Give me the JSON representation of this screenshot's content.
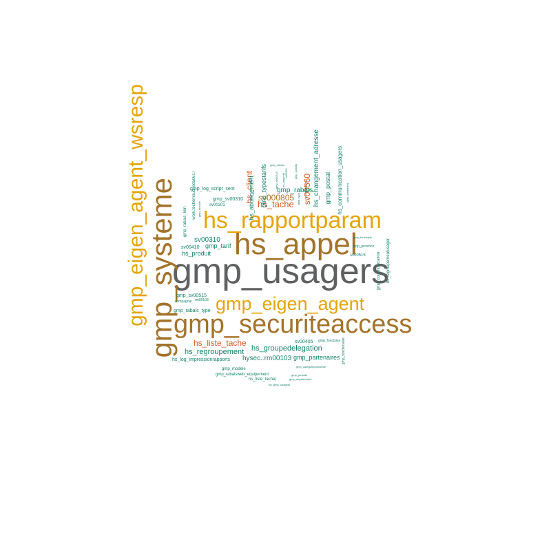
{
  "palette": {
    "gray": "#5f6062",
    "gold": "#e3a50e",
    "brown": "#a3732a",
    "orange": "#d2581f",
    "teal": "#14806b"
  },
  "words": {
    "gmp_usagers": "gmp_usagers",
    "gmp_securiteaccess": "gmp_securiteaccess",
    "hs_appel": "hs_appel",
    "hs_rapportparam": "hs_rapportparam",
    "gmp_eigen_agent": "gmp_eigen_agent",
    "gmp_systeme": "gmp_systeme",
    "gmp_eigen_agent_wsresp": "gmp_eigen_agent_wsresp",
    "hs_tache": "hs_tache",
    "hs_client": "hs_client",
    "sv000805": "sv000805",
    "sv00560": "sv00560",
    "hs_liste_tache": "hs_liste_tache",
    "hs_regroupement": "hs_regroupement",
    "hs_groupedelegation": "hs_groupedelegation",
    "hysec_rm00103": "hysec..rm00103",
    "gmp_partenaires": "gmp_partenaires",
    "hs_log_impressionrapports": "hs_log_impressionrapports",
    "sv00310": "sv00310",
    "gmp_tarif": "gmp_tarif",
    "hs_produit": "hs_produit",
    "sv00410": "sv00410",
    "gmp_rabais": "gmp_rabais",
    "gmp_typestarifs": "gmp_typestarifs",
    "hs_changement_adresse": "hs_changement_adresse",
    "gmp_postal": "gmp_postal",
    "hs_communication_usagers": "hs_communication_usagers",
    "gmp_log_script_sent": "gmp_log_script_sent",
    "gmp_sv00310": "gmp_sv00310",
    "sv00301": "sv00301",
    "gmp_rabais_lien": "gmp_rabais_lien",
    "work_techemoud_ed": "work.techemoud_ed50617",
    "gmp_sv00515": "gmp_sv00515",
    "rm00103": "rm00103",
    "compagnie": "compagnie",
    "gmp_rabais_type": "gmp_rabais_type",
    "sv00405": "sv00405",
    "gmp_fonctsize": "gmp_fonctsize",
    "gmp_modele": "gmp_modele",
    "gmp_rabaisweb_equipement": "gmp_rabaisweb_equipement",
    "hs_liste_tache2": "hs_liste_tache)",
    "gmp_periode": "gmp_periode",
    "gmp_departement": "gmp_departement",
    "gmp_categorieprobleme": "gmp_categorieprobleme",
    "tru_gmp_usagers": "tru_gmp_usagers",
    "gmp_fonctstyle": "gmp_fonctstyle",
    "gmp_province": "gmp_province",
    "sv00515": "sv00515",
    "gmp_communication": "gmp_communication",
    "hs_regroupementusager": "hs_regroupementusager",
    "gmp_fonctionalite": "gmp_fonctionalite",
    "gmp_statement": "gmp_statement",
    "gmp_sv00515b": "gmp_sv00515",
    "gmp_clients": "gmp_clients",
    "hs_rapports": "hs_rapports",
    "gmp_activity": "gmp_activity",
    "gmp_type": "gmp_type",
    "hs_equipement": "hs_equipement",
    "hs_abonnement": "hs_abonnement",
    "sv00301b": "sv00301",
    "gmp_module": "gmp_module"
  }
}
